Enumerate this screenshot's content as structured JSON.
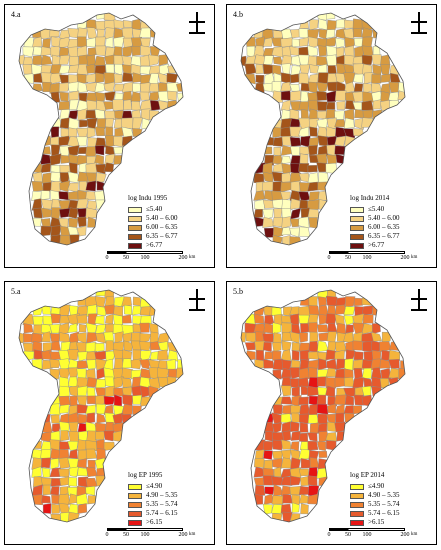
{
  "panels": [
    {
      "label": "4.a",
      "legend_title": "log Indu 1995",
      "classes": [
        "≤5.40",
        "5.40 – 6.00",
        "6.00 – 6.35",
        "6.35 – 6.77",
        ">6.77"
      ],
      "colors": [
        "#ffffbe",
        "#f5d282",
        "#d79b41",
        "#a4551a",
        "#6e1010"
      ],
      "class_weights": [
        0.2,
        0.3,
        0.25,
        0.17,
        0.08
      ]
    },
    {
      "label": "4.b",
      "legend_title": "log Indu 2014",
      "classes": [
        "≤5.40",
        "5.40 – 6.00",
        "6.00 – 6.35",
        "6.35 – 6.77",
        ">6.77"
      ],
      "colors": [
        "#ffffbe",
        "#f5d282",
        "#d79b41",
        "#a4551a",
        "#6e1010"
      ],
      "class_weights": [
        0.14,
        0.28,
        0.26,
        0.2,
        0.12
      ]
    },
    {
      "label": "5.a",
      "legend_title": "log EP 1995",
      "classes": [
        "≤4.90",
        "4.90 – 5.35",
        "5.35 – 5.74",
        "5.74 – 6.15",
        ">6.15"
      ],
      "colors": [
        "#ffff32",
        "#f5b43c",
        "#f08232",
        "#e65a2d",
        "#e61414"
      ],
      "class_weights": [
        0.22,
        0.33,
        0.26,
        0.15,
        0.04
      ]
    },
    {
      "label": "5.b",
      "legend_title": "log EP 2014",
      "classes": [
        "≤4.90",
        "4.90 – 5.35",
        "5.35 – 5.74",
        "5.74 – 6.15",
        ">6.15"
      ],
      "colors": [
        "#ffff32",
        "#f5b43c",
        "#f08232",
        "#e65a2d",
        "#e61414"
      ],
      "class_weights": [
        0.07,
        0.25,
        0.2,
        0.38,
        0.1
      ]
    }
  ],
  "scale_bar": {
    "ticks": [
      "0",
      "50",
      "100",
      "200"
    ],
    "unit": "km"
  },
  "north_arrow_icon": "north-arrow-icon"
}
